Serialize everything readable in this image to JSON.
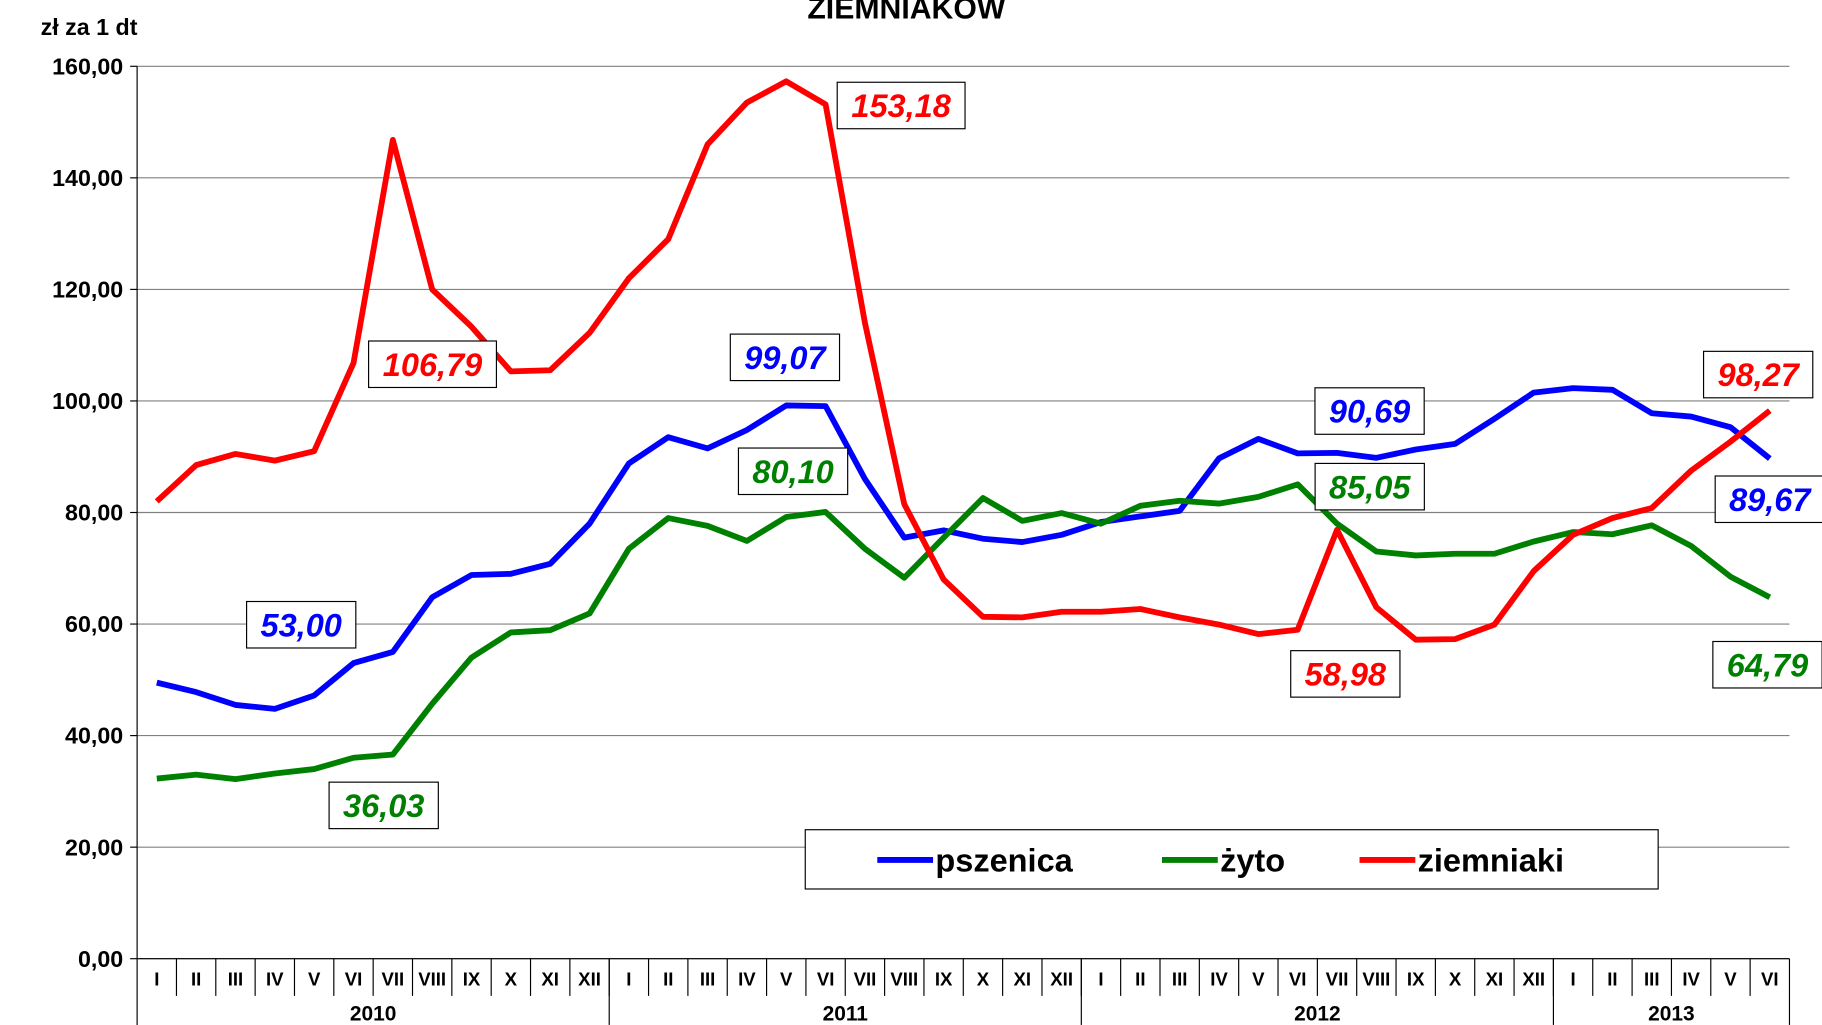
{
  "chart_data": {
    "type": "line",
    "title": "ZIEMNIAKÓW",
    "y_axis_label": "zł za 1 dt",
    "categories": [
      "I",
      "II",
      "III",
      "IV",
      "V",
      "VI",
      "VII",
      "VIII",
      "IX",
      "X",
      "XI",
      "XII",
      "I",
      "II",
      "III",
      "IV",
      "V",
      "VI",
      "VII",
      "VIII",
      "IX",
      "X",
      "XI",
      "XII",
      "I",
      "II",
      "III",
      "IV",
      "V",
      "VI",
      "VII",
      "VIII",
      "IX",
      "X",
      "XI",
      "XII",
      "I",
      "II",
      "III",
      "IV",
      "V",
      "VI"
    ],
    "year_groups": [
      {
        "label": "2010",
        "count": 12
      },
      {
        "label": "2011",
        "count": 12
      },
      {
        "label": "2012",
        "count": 12
      },
      {
        "label": "2013",
        "count": 6
      }
    ],
    "ylim": [
      0,
      160
    ],
    "yticks": [
      {
        "value": 0,
        "label": "0,00"
      },
      {
        "value": 20,
        "label": "20,00"
      },
      {
        "value": 40,
        "label": "40,00"
      },
      {
        "value": 60,
        "label": "60,00"
      },
      {
        "value": 80,
        "label": "80,00"
      },
      {
        "value": 100,
        "label": "100,00"
      },
      {
        "value": 120,
        "label": "120,00"
      },
      {
        "value": 140,
        "label": "140,00"
      },
      {
        "value": 160,
        "label": "160,00"
      }
    ],
    "grid": true,
    "series": [
      {
        "name": "pszenica",
        "color": "#0000ff",
        "values": [
          49.5,
          47.8,
          45.5,
          44.8,
          47.2,
          53.0,
          55.0,
          64.8,
          68.8,
          69.0,
          70.8,
          78.0,
          88.8,
          93.5,
          91.5,
          94.8,
          99.2,
          99.07,
          86.0,
          75.5,
          76.8,
          75.3,
          74.7,
          76.0,
          78.3,
          79.3,
          80.3,
          89.7,
          93.2,
          90.6,
          90.69,
          89.8,
          91.3,
          92.3,
          96.8,
          101.5,
          102.3,
          102.0,
          97.8,
          97.2,
          95.3,
          89.67
        ],
        "value_labels": [
          null,
          null,
          null,
          null,
          null,
          "53,00",
          null,
          null,
          null,
          null,
          null,
          null,
          null,
          null,
          null,
          null,
          null,
          "99,07",
          null,
          null,
          null,
          null,
          null,
          null,
          null,
          null,
          null,
          null,
          null,
          null,
          "90,69",
          null,
          null,
          null,
          null,
          null,
          null,
          null,
          null,
          null,
          null,
          "89,67"
        ]
      },
      {
        "name": "żyto",
        "color": "#008000",
        "values": [
          32.3,
          33.0,
          32.2,
          33.2,
          34.0,
          36.03,
          36.6,
          45.7,
          54.0,
          58.5,
          58.9,
          61.9,
          73.5,
          79.0,
          77.6,
          74.9,
          79.2,
          80.1,
          73.5,
          68.3,
          75.5,
          82.6,
          78.5,
          79.9,
          78.0,
          81.2,
          82.1,
          81.6,
          82.8,
          85.05,
          78.0,
          73.0,
          72.3,
          72.6,
          72.6,
          74.8,
          76.5,
          76.1,
          77.7,
          74.0,
          68.5,
          64.79
        ],
        "value_labels": [
          null,
          null,
          null,
          null,
          null,
          "36,03",
          null,
          null,
          null,
          null,
          null,
          null,
          null,
          null,
          null,
          null,
          null,
          "80,10",
          null,
          null,
          null,
          null,
          null,
          null,
          null,
          null,
          null,
          null,
          null,
          "85,05",
          null,
          null,
          null,
          null,
          null,
          null,
          null,
          null,
          null,
          null,
          null,
          "64,79"
        ]
      },
      {
        "name": "ziemniaki",
        "color": "#ff0000",
        "values": [
          82.0,
          88.5,
          90.5,
          89.3,
          91.0,
          106.79,
          146.8,
          120.0,
          113.3,
          105.3,
          105.5,
          112.2,
          122.0,
          129.0,
          146.0,
          153.5,
          157.3,
          153.18,
          114.0,
          81.5,
          68.0,
          61.3,
          61.2,
          62.2,
          62.2,
          62.7,
          61.2,
          59.9,
          58.2,
          58.98,
          76.9,
          63.0,
          57.2,
          57.3,
          59.9,
          69.5,
          76.0,
          79.0,
          80.8,
          87.5,
          92.7,
          98.27
        ],
        "value_labels": [
          null,
          null,
          null,
          null,
          null,
          "106,79",
          null,
          null,
          null,
          null,
          null,
          null,
          null,
          null,
          null,
          null,
          null,
          "153,18",
          null,
          null,
          null,
          null,
          null,
          null,
          null,
          null,
          null,
          null,
          null,
          "58,98",
          null,
          null,
          null,
          null,
          null,
          null,
          null,
          null,
          null,
          null,
          null,
          "98,27"
        ]
      }
    ]
  }
}
